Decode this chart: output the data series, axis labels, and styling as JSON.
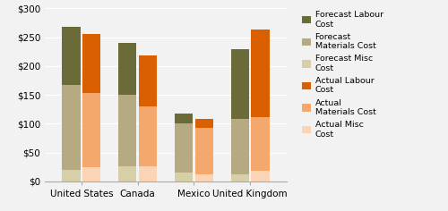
{
  "categories": [
    "United States",
    "Canada",
    "Mexico",
    "United Kingdom"
  ],
  "forecast": {
    "misc": [
      20,
      27,
      15,
      13
    ],
    "materials": [
      148,
      123,
      85,
      95
    ],
    "labour": [
      100,
      90,
      18,
      122
    ]
  },
  "actual": {
    "misc": [
      25,
      27,
      13,
      18
    ],
    "materials": [
      128,
      103,
      80,
      93
    ],
    "labour": [
      102,
      88,
      15,
      152
    ]
  },
  "colors": {
    "forecast_labour": "#6b6b3a",
    "forecast_materials": "#b5aa82",
    "forecast_misc": "#d6cfa8",
    "actual_labour": "#d95f00",
    "actual_materials": "#f5a86e",
    "actual_misc": "#fad4b4"
  },
  "ylim": [
    0,
    300
  ],
  "yticks": [
    0,
    50,
    100,
    150,
    200,
    250,
    300
  ],
  "ytick_labels": [
    "$0",
    "$50",
    "$100",
    "$150",
    "$200",
    "$250",
    "$300"
  ],
  "bar_width": 0.32,
  "figsize": [
    5.0,
    2.36
  ],
  "dpi": 100
}
